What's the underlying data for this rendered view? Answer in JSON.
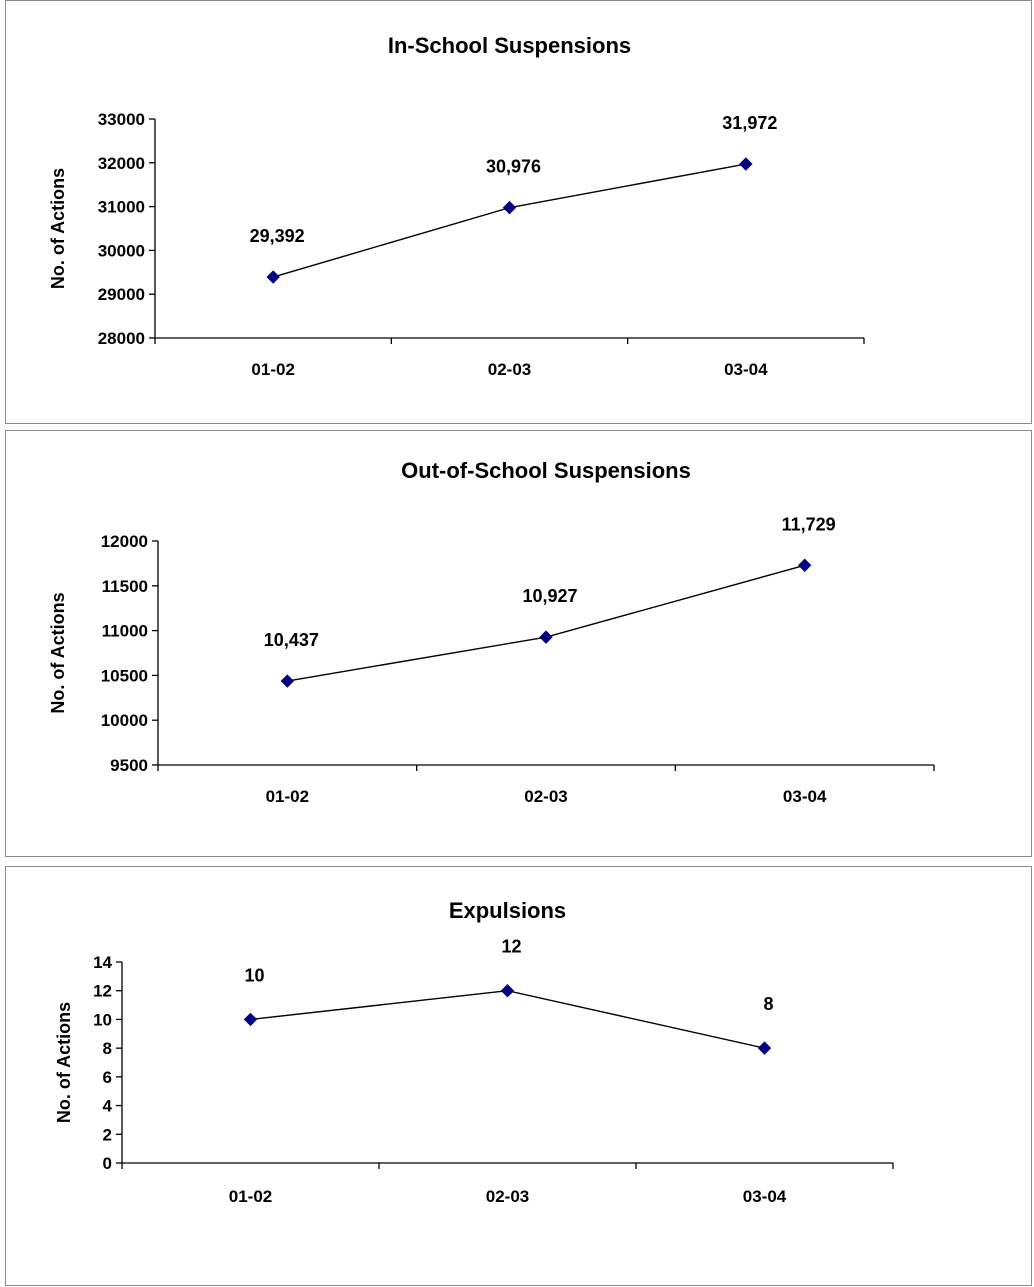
{
  "chart_data": [
    {
      "type": "line",
      "title": "In-School Suspensions",
      "xlabel": "",
      "ylabel": "No. of Actions",
      "categories": [
        "01-02",
        "02-03",
        "03-04"
      ],
      "series": [
        {
          "values": [
            29392,
            30976,
            31972
          ],
          "color": "#000080"
        }
      ],
      "data_labels": [
        "29,392",
        "30,976",
        "31,972"
      ],
      "ylim": [
        28000,
        33000
      ],
      "yticks": [
        28000,
        29000,
        30000,
        31000,
        32000,
        33000
      ],
      "grid": false
    },
    {
      "type": "line",
      "title": "Out-of-School Suspensions",
      "xlabel": "",
      "ylabel": "No. of Actions",
      "categories": [
        "01-02",
        "02-03",
        "03-04"
      ],
      "series": [
        {
          "values": [
            10437,
            10927,
            11729
          ],
          "color": "#000080"
        }
      ],
      "data_labels": [
        "10,437",
        "10,927",
        "11,729"
      ],
      "ylim": [
        9500,
        12000
      ],
      "yticks": [
        9500,
        10000,
        10500,
        11000,
        11500,
        12000
      ],
      "grid": false
    },
    {
      "type": "line",
      "title": "Expulsions",
      "xlabel": "",
      "ylabel": "No. of Actions",
      "categories": [
        "01-02",
        "02-03",
        "03-04"
      ],
      "series": [
        {
          "values": [
            10,
            12,
            8
          ],
          "color": "#000080"
        }
      ],
      "data_labels": [
        "10",
        "12",
        "8"
      ],
      "ylim": [
        0,
        14
      ],
      "yticks": [
        0,
        2,
        4,
        6,
        8,
        10,
        12,
        14
      ],
      "grid": false
    }
  ]
}
